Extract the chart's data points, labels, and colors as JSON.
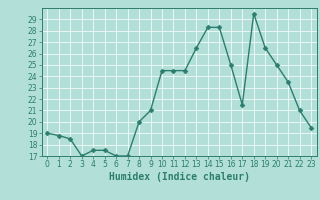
{
  "x": [
    0,
    1,
    2,
    3,
    4,
    5,
    6,
    7,
    8,
    9,
    10,
    11,
    12,
    13,
    14,
    15,
    16,
    17,
    18,
    19,
    20,
    21,
    22,
    23
  ],
  "y": [
    19,
    18.8,
    18.5,
    17,
    17.5,
    17.5,
    17,
    17,
    20,
    21,
    24.5,
    24.5,
    24.5,
    26.5,
    28.3,
    28.3,
    25,
    21.5,
    29.5,
    26.5,
    25,
    23.5,
    21,
    19.5
  ],
  "line_color": "#2d7d6e",
  "marker_color": "#2d7d6e",
  "bg_color": "#b2e0d8",
  "grid_color": "#ffffff",
  "xlabel": "Humidex (Indice chaleur)",
  "ylim": [
    17,
    30
  ],
  "xlim": [
    -0.5,
    23.5
  ],
  "yticks": [
    17,
    18,
    19,
    20,
    21,
    22,
    23,
    24,
    25,
    26,
    27,
    28,
    29
  ],
  "xticks": [
    0,
    1,
    2,
    3,
    4,
    5,
    6,
    7,
    8,
    9,
    10,
    11,
    12,
    13,
    14,
    15,
    16,
    17,
    18,
    19,
    20,
    21,
    22,
    23
  ],
  "tick_label_color": "#2d7d6e",
  "axis_color": "#2d7d6e",
  "label_fontsize": 7,
  "tick_fontsize": 5.5,
  "line_width": 1.0,
  "marker_size": 2.5
}
